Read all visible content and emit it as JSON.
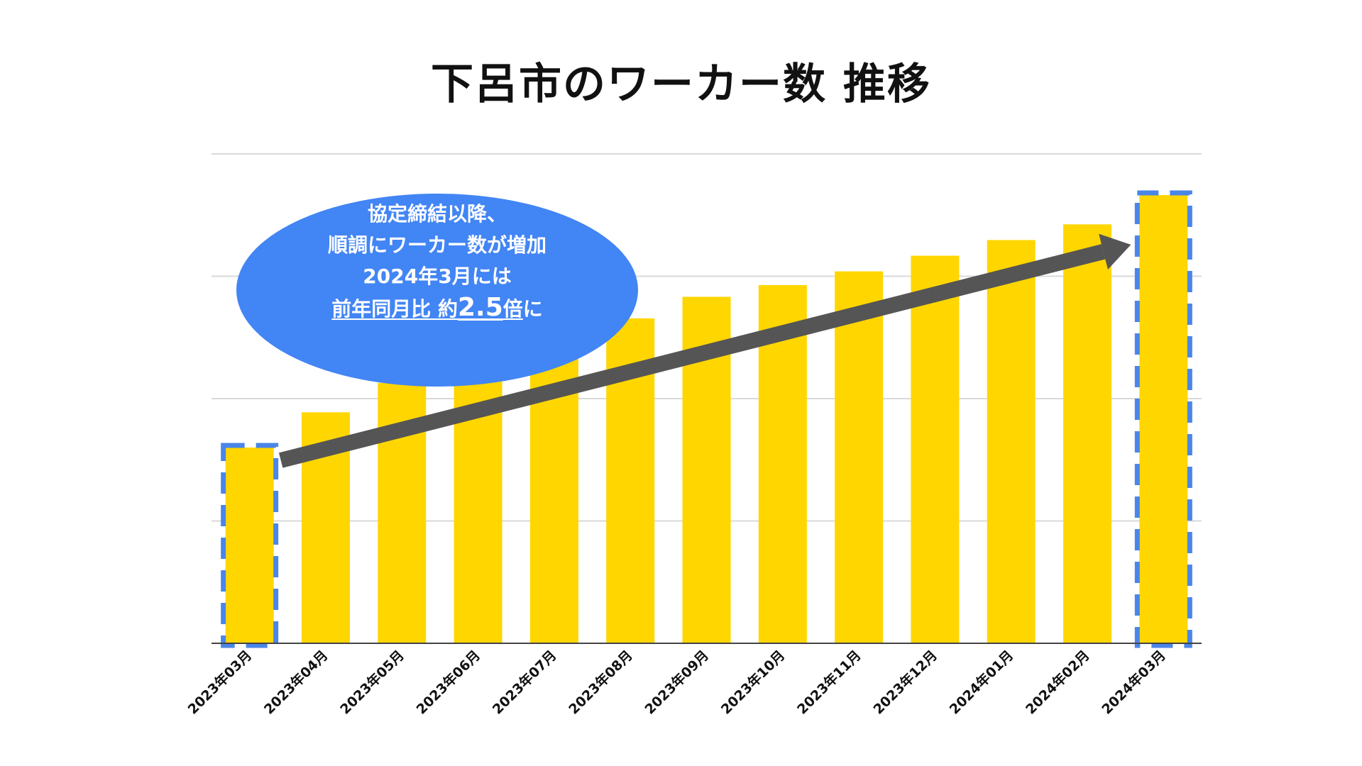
{
  "chart_data": {
    "type": "bar",
    "title": "下呂市のワーカー数 推移",
    "categories": [
      "2023年03月",
      "2023年04月",
      "2023年05月",
      "2023年06月",
      "2023年07月",
      "2023年08月",
      "2023年09月",
      "2023年10月",
      "2023年11月",
      "2023年12月",
      "2024年01月",
      "2024年02月",
      "2024年03月"
    ],
    "values": [
      1.0,
      1.18,
      1.33,
      1.38,
      1.54,
      1.66,
      1.77,
      1.83,
      1.9,
      1.98,
      2.06,
      2.14,
      2.29
    ],
    "ylim": [
      0,
      2.5
    ],
    "grid": true,
    "bar_color": "#ffd600",
    "highlight_color": "#4a86e8",
    "highlighted_categories": [
      "2023年03月",
      "2024年03月"
    ],
    "annotation": {
      "line1": "協定締結以降、",
      "line2": "順調にワーカー数が増加",
      "line3": "2024年3月には",
      "line4_underlined_a": "前年同月比 約",
      "line4_big": "2.5",
      "line4_underlined_b": "倍",
      "line4_tail": "に",
      "bubble_color": "#4285f4",
      "arrow_color": "#555555"
    }
  }
}
